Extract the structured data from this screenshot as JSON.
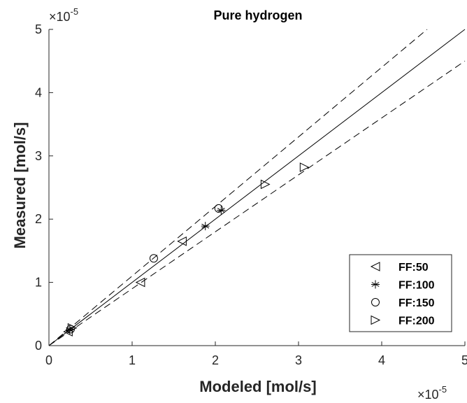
{
  "chart_data": {
    "type": "scatter",
    "title": "Pure hydrogen",
    "xlabel": "Modeled [mol/s]",
    "ylabel": "Measured [mol/s]",
    "xlim": [
      0,
      5e-05
    ],
    "ylim": [
      0,
      5e-05
    ],
    "axis_multiplier": {
      "base": "×10",
      "exponent": "-5"
    },
    "x_ticks": [
      0,
      1,
      2,
      3,
      4,
      5
    ],
    "y_ticks": [
      0,
      1,
      2,
      3,
      4,
      5
    ],
    "grid": false,
    "legend_position": "bottom-right",
    "reference_lines": [
      {
        "style": "solid",
        "slope": 1.0
      },
      {
        "style": "dashed",
        "slope": 1.1
      },
      {
        "style": "dashed",
        "slope": 0.9
      }
    ],
    "series": [
      {
        "name": "FF:50",
        "marker": "triangle-left",
        "points": [
          [
            2.3e-06,
            2.2e-06
          ],
          [
            1.1e-05,
            1e-05
          ],
          [
            1.6e-05,
            1.65e-05
          ]
        ]
      },
      {
        "name": "FF:100",
        "marker": "asterisk",
        "points": [
          [
            2.5e-06,
            2.5e-06
          ],
          [
            1.88e-05,
            1.89e-05
          ],
          [
            2.07e-05,
            2.14e-05
          ]
        ]
      },
      {
        "name": "FF:150",
        "marker": "circle",
        "points": [
          [
            2.6e-06,
            2.6e-06
          ],
          [
            1.26e-05,
            1.38e-05
          ],
          [
            2.04e-05,
            2.17e-05
          ]
        ]
      },
      {
        "name": "FF:200",
        "marker": "triangle-right",
        "points": [
          [
            2.8e-06,
            2.8e-06
          ],
          [
            2.6e-05,
            2.55e-05
          ],
          [
            3.07e-05,
            2.82e-05
          ]
        ]
      }
    ]
  }
}
